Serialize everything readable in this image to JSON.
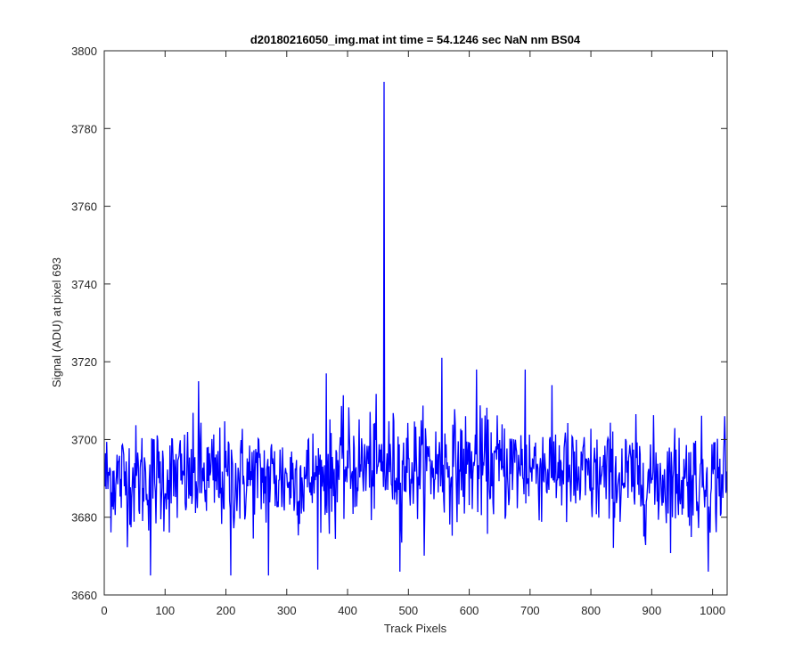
{
  "chart_data": {
    "type": "line",
    "title": "d20180216050_img.mat int time = 54.1246 sec  NaN nm BS04",
    "xlabel": "Track Pixels",
    "ylabel": "Signal (ADU) at pixel 693",
    "xlim": [
      0,
      1024
    ],
    "ylim": [
      3660,
      3800
    ],
    "xticks": [
      0,
      100,
      200,
      300,
      400,
      500,
      600,
      700,
      800,
      900,
      1000
    ],
    "yticks": [
      3660,
      3680,
      3700,
      3720,
      3740,
      3760,
      3780,
      3800
    ],
    "grid": false,
    "line_color": "#0000ff",
    "series": [
      {
        "x_start": 1,
        "x_step": 1,
        "baseline": 3690,
        "noise_amplitude": 9,
        "count": 1024,
        "notable_points": [
          {
            "x": 460,
            "y": 3792
          },
          {
            "x": 76,
            "y": 3665
          },
          {
            "x": 208,
            "y": 3665
          },
          {
            "x": 270,
            "y": 3665
          },
          {
            "x": 486,
            "y": 3666
          },
          {
            "x": 993,
            "y": 3666
          },
          {
            "x": 155,
            "y": 3715
          },
          {
            "x": 555,
            "y": 3721
          },
          {
            "x": 612,
            "y": 3718
          },
          {
            "x": 692,
            "y": 3718
          },
          {
            "x": 365,
            "y": 3717
          },
          {
            "x": 1020,
            "y": 3706
          }
        ]
      }
    ]
  }
}
